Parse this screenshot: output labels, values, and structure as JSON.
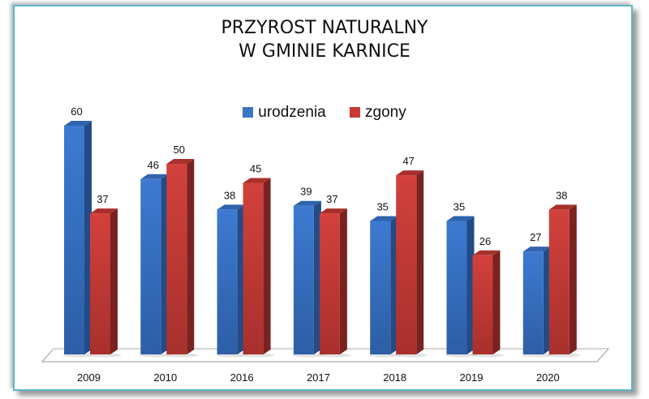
{
  "chart_data": {
    "type": "bar",
    "title": "PRZYROST NATURALNY W GMINIE KARNICE",
    "title_lines": [
      "PRZYROST NATURALNY",
      "W GMINIE KARNICE"
    ],
    "categories": [
      "2009",
      "2010",
      "2016",
      "2017",
      "2018",
      "2019",
      "2020"
    ],
    "series": [
      {
        "name": "urodzenia",
        "color": "#3a75c4",
        "values": [
          60,
          46,
          38,
          39,
          35,
          35,
          27
        ]
      },
      {
        "name": "zgony",
        "color": "#c93a36",
        "values": [
          37,
          50,
          45,
          37,
          47,
          26,
          38
        ]
      }
    ],
    "xlabel": "",
    "ylabel": "",
    "ylim": [
      0,
      60
    ],
    "grid": false,
    "legend_position": "top",
    "style": "3d-column",
    "data_labels": true
  }
}
